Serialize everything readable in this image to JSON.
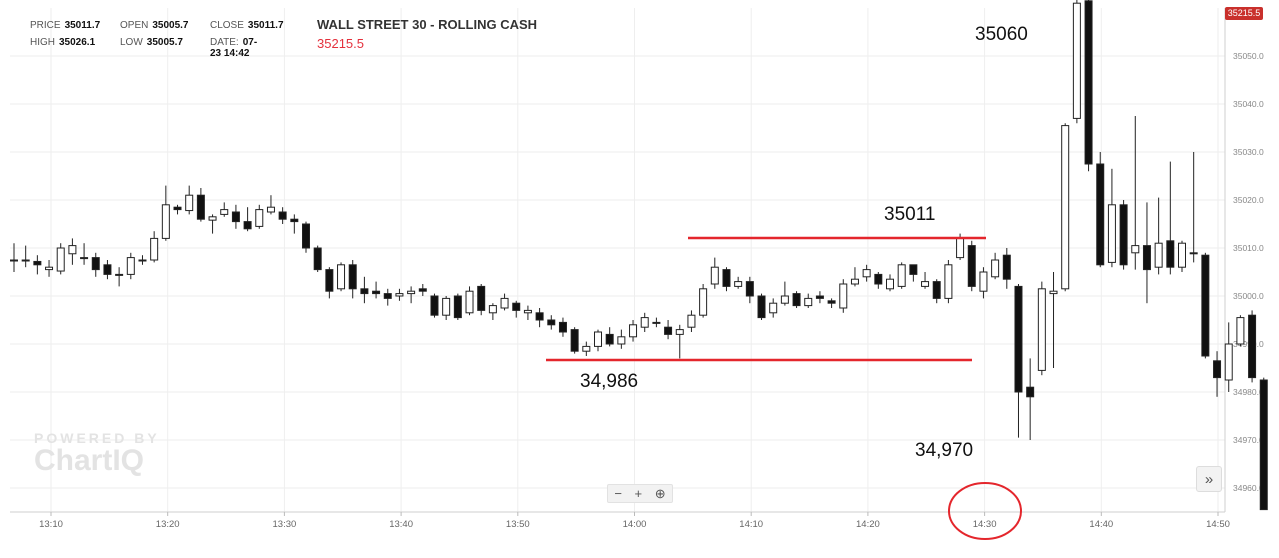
{
  "hud": {
    "price_label": "PRICE",
    "price": "35011.7",
    "open_label": "OPEN",
    "open": "35005.7",
    "close_label": "CLOSE",
    "close": "35011.7",
    "high_label": "HIGH",
    "high": "35026.1",
    "low_label": "LOW",
    "low": "35005.7",
    "date_label": "DATE:",
    "date": "07-23 14:42"
  },
  "symbol": {
    "name": "WALL STREET 30 - ROLLING CASH",
    "last_price": "35215.5",
    "price_tag": "35215.5"
  },
  "zoom": {
    "minus": "−",
    "plus": "+",
    "reset": "⊕"
  },
  "nav": {
    "next": "»"
  },
  "watermark": {
    "line1": "POWERED BY",
    "line2": "ChartIQ"
  },
  "annotations": {
    "high_label": "35060",
    "range_top_label": "35011",
    "range_bottom_label": "34,986",
    "low_label": "34,970"
  },
  "colors": {
    "up_fill": "#ffffff",
    "down_fill": "#111111",
    "wick": "#222222",
    "annotation_line": "#e4262c",
    "circle": "#e4262c",
    "price_tag": "#c9302c",
    "symbol_price": "#e4303c",
    "grid": "#eeeeee"
  },
  "chart_data": {
    "type": "candlestick",
    "title": "WALL STREET 30 - ROLLING CASH",
    "x_ticks": [
      "13:10",
      "13:20",
      "13:30",
      "13:40",
      "13:50",
      "14:00",
      "14:10",
      "14:20",
      "14:30",
      "14:40",
      "14:50"
    ],
    "y_ticks": [
      34960.0,
      34970.0,
      34980.0,
      34990.0,
      35000.0,
      35010.0,
      35020.0,
      35030.0,
      35040.0,
      35050.0
    ],
    "ylim": [
      34955.5,
      35064.2
    ],
    "x_start": "13:04",
    "interval_minutes": 1,
    "grid": true,
    "candles": [
      [
        35007.5,
        35007.5,
        35011.0,
        35005.0
      ],
      [
        35007.5,
        35007.5,
        35010.5,
        35006.0
      ],
      [
        35007.2,
        35006.5,
        35008.5,
        35004.5
      ],
      [
        35005.5,
        35006.0,
        35007.5,
        35004.0
      ],
      [
        35005.2,
        35010.0,
        35011.0,
        35004.5
      ],
      [
        35008.8,
        35010.5,
        35012.0,
        35006.5
      ],
      [
        35008.0,
        35008.0,
        35011.0,
        35006.5
      ],
      [
        35008.0,
        35005.5,
        35009.0,
        35004.0
      ],
      [
        35006.5,
        35004.5,
        35007.5,
        35003.5
      ],
      [
        35004.5,
        35004.5,
        35006.0,
        35002.0
      ],
      [
        35004.5,
        35008.0,
        35009.0,
        35003.5
      ],
      [
        35007.3,
        35007.5,
        35008.5,
        35006.5
      ],
      [
        35007.5,
        35012.0,
        35013.5,
        35007.0
      ],
      [
        35012.0,
        35019.0,
        35023.0,
        35011.5
      ],
      [
        35018.5,
        35018.0,
        35019.0,
        35017.0
      ],
      [
        35017.8,
        35021.0,
        35023.0,
        35017.0
      ],
      [
        35021.0,
        35016.0,
        35022.5,
        35015.5
      ],
      [
        35015.8,
        35016.5,
        35017.0,
        35013.0
      ],
      [
        35017.0,
        35018.0,
        35019.5,
        35016.5
      ],
      [
        35017.5,
        35015.5,
        35019.0,
        35014.0
      ],
      [
        35015.5,
        35014.0,
        35018.5,
        35013.5
      ],
      [
        35014.5,
        35018.0,
        35019.0,
        35014.0
      ],
      [
        35017.5,
        35018.5,
        35021.0,
        35017.0
      ],
      [
        35017.5,
        35016.0,
        35018.5,
        35015.0
      ],
      [
        35016.0,
        35015.5,
        35017.0,
        35013.0
      ],
      [
        35015.0,
        35010.0,
        35015.5,
        35009.0
      ],
      [
        35010.0,
        35005.5,
        35010.5,
        35005.0
      ],
      [
        35005.5,
        35001.0,
        35006.0,
        34999.5
      ],
      [
        35001.5,
        35006.5,
        35007.0,
        35001.0
      ],
      [
        35006.5,
        35001.5,
        35007.5,
        34999.5
      ],
      [
        35001.5,
        35000.5,
        35004.0,
        34998.5
      ],
      [
        35001.0,
        35000.5,
        35003.0,
        34999.5
      ],
      [
        35000.5,
        34999.5,
        35001.5,
        34998.0
      ],
      [
        35000.0,
        35000.5,
        35001.5,
        34999.0
      ],
      [
        35000.5,
        35001.0,
        35002.0,
        34998.5
      ],
      [
        35001.5,
        35001.0,
        35002.5,
        35000.0
      ],
      [
        35000.0,
        34996.0,
        35000.5,
        34995.5
      ],
      [
        34996.0,
        34999.5,
        35000.0,
        34995.0
      ],
      [
        35000.0,
        34995.5,
        35000.5,
        34995.0
      ],
      [
        34996.5,
        35001.0,
        35002.0,
        34996.0
      ],
      [
        35002.0,
        34997.0,
        35002.5,
        34996.0
      ],
      [
        34996.5,
        34998.0,
        34998.5,
        34995.0
      ],
      [
        34997.5,
        34999.5,
        35000.5,
        34997.0
      ],
      [
        34998.5,
        34997.0,
        34999.0,
        34995.5
      ],
      [
        34996.5,
        34997.0,
        34998.0,
        34995.0
      ],
      [
        34996.5,
        34995.0,
        34997.5,
        34993.5
      ],
      [
        34995.0,
        34994.0,
        34996.0,
        34993.0
      ],
      [
        34994.5,
        34992.5,
        34995.5,
        34991.5
      ],
      [
        34993.0,
        34988.5,
        34993.5,
        34988.0
      ],
      [
        34988.5,
        34989.5,
        34990.5,
        34987.5
      ],
      [
        34989.5,
        34992.5,
        34993.0,
        34988.5
      ],
      [
        34992.0,
        34990.0,
        34993.5,
        34989.5
      ],
      [
        34990.0,
        34991.5,
        34993.0,
        34989.0
      ],
      [
        34991.5,
        34994.0,
        34995.0,
        34990.5
      ],
      [
        34993.5,
        34995.5,
        34996.5,
        34992.5
      ],
      [
        34994.5,
        34994.5,
        34995.5,
        34993.5
      ],
      [
        34993.5,
        34992.0,
        34995.0,
        34991.0
      ],
      [
        34992.0,
        34993.0,
        34994.0,
        34987.0
      ],
      [
        34993.5,
        34996.0,
        34997.0,
        34992.5
      ],
      [
        34996.0,
        35001.5,
        35002.5,
        34995.5
      ],
      [
        35002.5,
        35006.0,
        35008.0,
        35001.5
      ],
      [
        35005.5,
        35002.0,
        35006.0,
        35001.0
      ],
      [
        35002.0,
        35003.0,
        35004.0,
        35001.5
      ],
      [
        35003.0,
        35000.0,
        35004.0,
        34998.5
      ],
      [
        35000.0,
        34995.5,
        35000.5,
        34995.0
      ],
      [
        34996.5,
        34998.5,
        34999.5,
        34995.5
      ],
      [
        34998.5,
        35000.0,
        35003.0,
        34998.0
      ],
      [
        35000.5,
        34998.0,
        35001.0,
        34997.5
      ],
      [
        34998.0,
        34999.5,
        35000.5,
        34997.5
      ],
      [
        35000.0,
        34999.5,
        35001.0,
        34998.5
      ],
      [
        34999.0,
        34998.5,
        34999.5,
        34997.5
      ],
      [
        34997.5,
        35002.5,
        35003.5,
        34996.5
      ],
      [
        35002.5,
        35003.5,
        35006.0,
        35002.0
      ],
      [
        35004.0,
        35005.5,
        35006.5,
        35003.0
      ],
      [
        35004.5,
        35002.5,
        35005.0,
        35001.5
      ],
      [
        35001.5,
        35003.5,
        35004.5,
        35001.0
      ],
      [
        35002.0,
        35006.5,
        35007.0,
        35001.5
      ],
      [
        35006.5,
        35004.5,
        35006.5,
        35003.0
      ],
      [
        35002.0,
        35003.0,
        35005.0,
        35001.5
      ],
      [
        35003.0,
        34999.5,
        35003.5,
        34998.5
      ],
      [
        34999.5,
        35006.5,
        35007.5,
        34998.5
      ],
      [
        35008.0,
        35012.0,
        35013.0,
        35007.5
      ],
      [
        35010.5,
        35002.0,
        35011.5,
        35001.0
      ],
      [
        35001.0,
        35005.0,
        35006.0,
        34999.5
      ],
      [
        35004.0,
        35007.5,
        35009.0,
        35003.5
      ],
      [
        35008.5,
        35003.5,
        35010.0,
        35001.5
      ],
      [
        35002.0,
        34980.0,
        35002.5,
        34970.5
      ],
      [
        34981.0,
        34979.0,
        34987.0,
        34970.0
      ],
      [
        34984.5,
        35001.5,
        35003.0,
        34983.5
      ],
      [
        35000.5,
        35001.0,
        35005.0,
        34985.0
      ],
      [
        35001.5,
        35035.5,
        35036.0,
        35001.0
      ],
      [
        35037.0,
        35061.0,
        35063.0,
        35036.0
      ],
      [
        35061.5,
        35027.5,
        35062.0,
        35026.0
      ],
      [
        35027.5,
        35006.5,
        35030.0,
        35006.0
      ],
      [
        35007.0,
        35019.0,
        35026.5,
        35006.0
      ],
      [
        35019.0,
        35006.5,
        35020.0,
        35005.5
      ],
      [
        35009.0,
        35010.5,
        35037.5,
        35005.5
      ],
      [
        35010.5,
        35005.5,
        35019.5,
        34998.5
      ],
      [
        35006.0,
        35011.0,
        35020.5,
        35004.5
      ],
      [
        35011.5,
        35006.0,
        35028.0,
        35004.5
      ],
      [
        35006.0,
        35011.0,
        35011.5,
        35005.0
      ],
      [
        35009.0,
        35009.0,
        35030.0,
        35007.0
      ],
      [
        35008.5,
        34987.5,
        35009.0,
        34987.0
      ],
      [
        34986.5,
        34983.0,
        34988.5,
        34979.0
      ],
      [
        34982.5,
        34990.0,
        34994.5,
        34980.0
      ],
      [
        34990.0,
        34995.5,
        34996.0,
        34989.5
      ],
      [
        34996.0,
        34983.0,
        34997.0,
        34982.0
      ],
      [
        34982.5,
        34955.5,
        34983.0,
        34955.5
      ]
    ]
  }
}
